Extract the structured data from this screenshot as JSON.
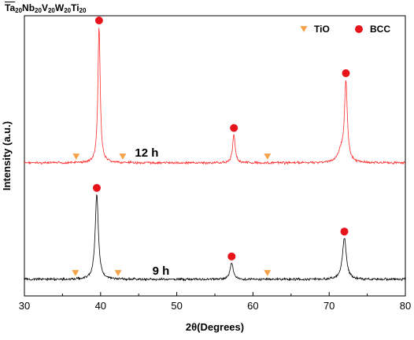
{
  "title": {
    "parts": [
      {
        "text": "Ta",
        "overbar": true
      },
      {
        "sub": "20"
      },
      {
        "text": "Nb"
      },
      {
        "sub": "20"
      },
      {
        "text": "V"
      },
      {
        "sub": "20"
      },
      {
        "text": "W"
      },
      {
        "sub": "20"
      },
      {
        "text": "Ti"
      },
      {
        "sub": "20"
      }
    ]
  },
  "colors": {
    "trace_12h": "#ff2a2a",
    "trace_9h": "#000000",
    "tio_marker": "#f5a24a",
    "bcc_marker": "#e8141c",
    "axis": "#000000"
  },
  "chart_data": {
    "type": "line",
    "xlabel": "2θ(Degrees)",
    "ylabel": "Intensity (a.u.)",
    "xlim": [
      30,
      80
    ],
    "xticks": [
      30,
      40,
      50,
      60,
      70,
      80
    ],
    "xtick_labels": [
      "30",
      "40",
      "50",
      "60",
      "70",
      "80"
    ],
    "y_units": "arbitrary",
    "legend": {
      "position": "top-right",
      "items": [
        {
          "label": "TiO",
          "marker": "down-triangle",
          "color": "#f5a24a"
        },
        {
          "label": "BCC",
          "marker": "circle",
          "color": "#e8141c"
        }
      ]
    },
    "series": [
      {
        "name": "12 h",
        "color": "#ff2a2a",
        "baseline": 1.0,
        "peaks": [
          {
            "x": 39.8,
            "height": 1.0,
            "width": 0.18
          },
          {
            "x": 57.5,
            "height": 0.21,
            "width": 0.2
          },
          {
            "x": 72.2,
            "height": 0.58,
            "width": 0.22
          },
          {
            "x": 71.6,
            "height": 0.08,
            "width": 0.5
          }
        ],
        "bcc_markers_x": [
          39.8,
          57.5,
          72.2
        ],
        "tio_markers_x": [
          36.8,
          42.9,
          61.9
        ]
      },
      {
        "name": "9 h",
        "color": "#000000",
        "baseline": 0.0,
        "peaks": [
          {
            "x": 39.5,
            "height": 0.82,
            "width": 0.25
          },
          {
            "x": 57.2,
            "height": 0.16,
            "width": 0.25
          },
          {
            "x": 72.0,
            "height": 0.4,
            "width": 0.3
          }
        ],
        "bcc_markers_x": [
          39.5,
          57.2,
          72.0
        ],
        "tio_markers_x": [
          36.7,
          42.3,
          61.9
        ]
      }
    ]
  }
}
